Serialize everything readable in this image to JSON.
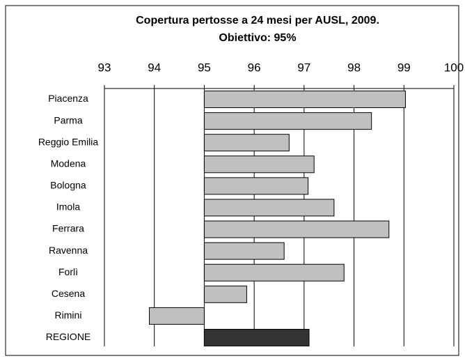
{
  "chart_data": {
    "type": "hbar",
    "title": "Copertura pertosse a 24 mesi per AUSL, 2009.",
    "subtitle": "Obiettivo: 95%",
    "categories": [
      "Piacenza",
      "Parma",
      "Reggio Emilia",
      "Modena",
      "Bologna",
      "Imola",
      "Ferrara",
      "Ravenna",
      "Forlì",
      "Cesena",
      "Rimini",
      "REGIONE"
    ],
    "values": [
      99.03,
      98.35,
      96.7,
      97.2,
      97.08,
      97.6,
      98.7,
      96.6,
      97.8,
      95.85,
      93.9,
      97.1
    ],
    "colors": [
      "#c0c0c0",
      "#c0c0c0",
      "#c0c0c0",
      "#c0c0c0",
      "#c0c0c0",
      "#c0c0c0",
      "#c0c0c0",
      "#c0c0c0",
      "#c0c0c0",
      "#c0c0c0",
      "#c0c0c0",
      "#333333"
    ],
    "baseline": 95,
    "xlim": [
      93,
      100
    ],
    "xticks": [
      93,
      94,
      95,
      96,
      97,
      98,
      99,
      100
    ],
    "grid": true
  }
}
